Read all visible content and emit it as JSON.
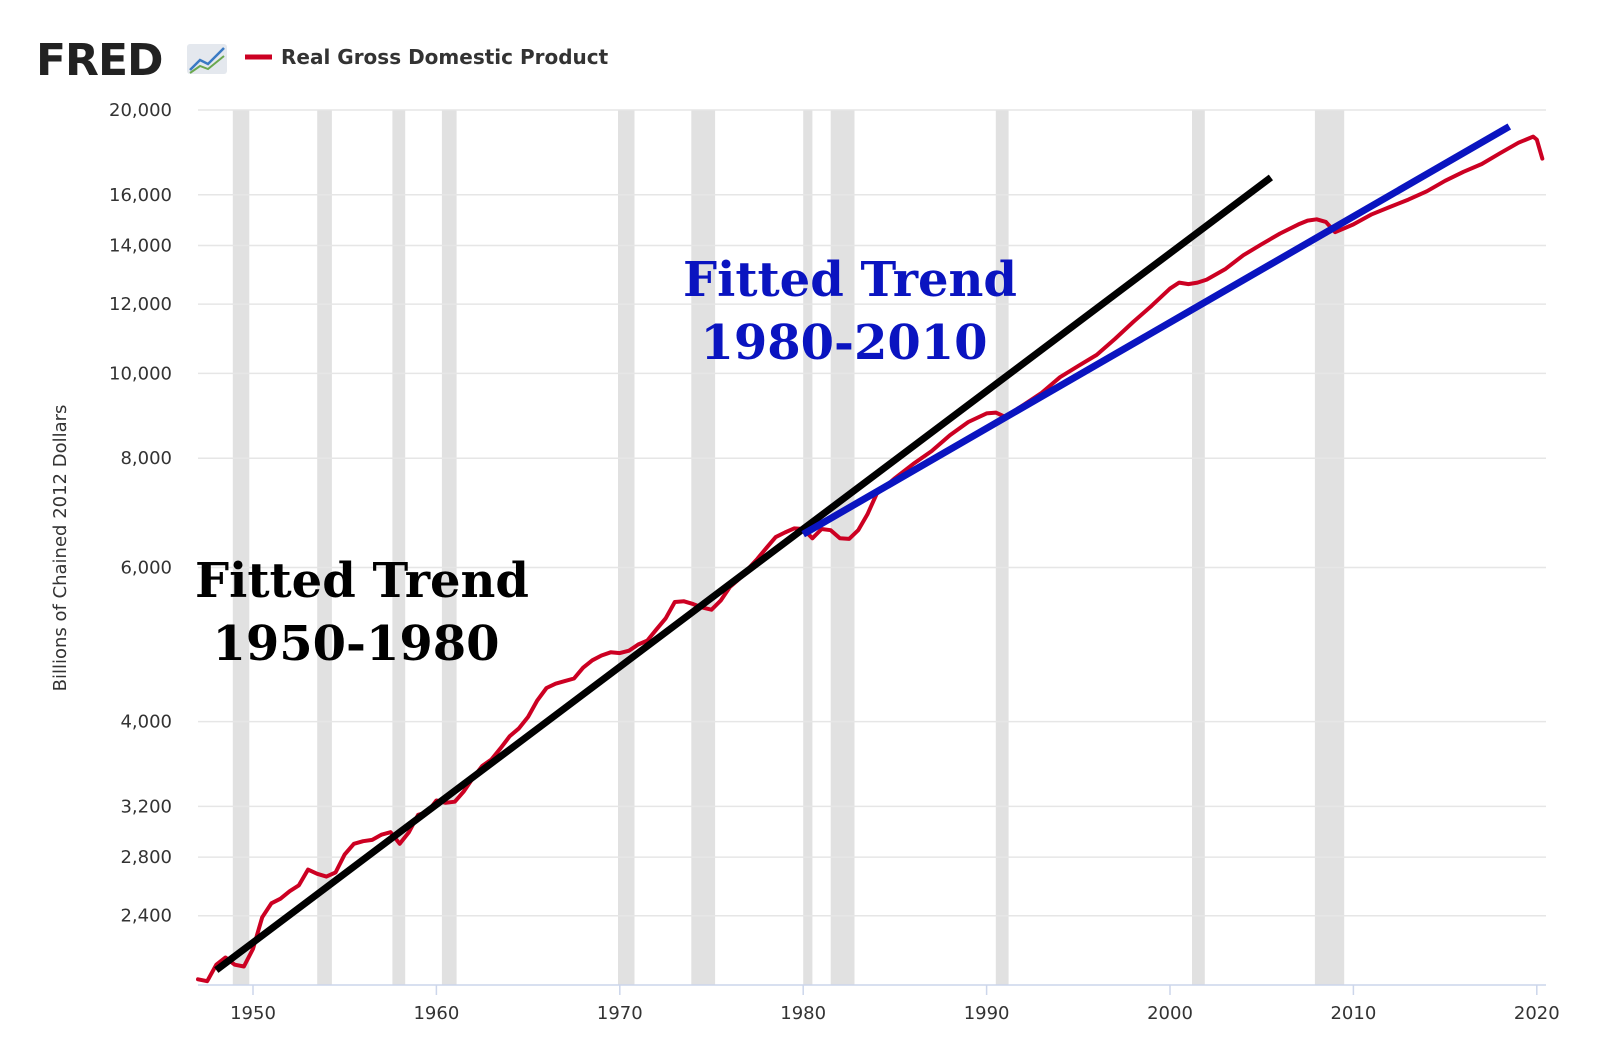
{
  "header": {
    "logo_text": "FRED",
    "legend_label": "Real Gross Domestic Product"
  },
  "colors": {
    "series": "#cc0022",
    "trend_1950_1980": "#000000",
    "trend_1980_2010": "#0a14c0",
    "recession": "#e1e1e1",
    "grid": "#e6e6e6",
    "axis": "#ccd6eb"
  },
  "chart_data": {
    "type": "line",
    "title": "",
    "xlabel": "",
    "ylabel": "Billions of Chained 2012 Dollars",
    "y_scale": "log",
    "xlim": [
      1947,
      2020.5
    ],
    "ylim": [
      2000,
      20000
    ],
    "grid": true,
    "legend_position": "top-left",
    "x_ticks": [
      1950,
      1960,
      1970,
      1980,
      1990,
      2000,
      2010,
      2020
    ],
    "y_ticks": [
      2400,
      2800,
      3200,
      4000,
      6000,
      8000,
      10000,
      12000,
      14000,
      16000,
      20000
    ],
    "recessions": [
      [
        1948.9,
        1949.8
      ],
      [
        1953.5,
        1954.3
      ],
      [
        1957.6,
        1958.3
      ],
      [
        1960.3,
        1961.1
      ],
      [
        1969.9,
        1970.8
      ],
      [
        1973.9,
        1975.2
      ],
      [
        1980.0,
        1980.5
      ],
      [
        1981.5,
        1982.8
      ],
      [
        1990.5,
        1991.2
      ],
      [
        2001.2,
        2001.9
      ],
      [
        2007.9,
        2009.5
      ]
    ],
    "series": [
      {
        "name": "Real Gross Domestic Product",
        "x": [
          1947.0,
          1947.5,
          1948.0,
          1948.5,
          1949.0,
          1949.5,
          1950.0,
          1950.5,
          1951.0,
          1951.5,
          1952.0,
          1952.5,
          1953.0,
          1953.5,
          1954.0,
          1954.5,
          1955.0,
          1955.5,
          1956.0,
          1956.5,
          1957.0,
          1957.5,
          1958.0,
          1958.5,
          1959.0,
          1959.5,
          1960.0,
          1960.5,
          1961.0,
          1961.5,
          1962.0,
          1962.5,
          1963.0,
          1963.5,
          1964.0,
          1964.5,
          1965.0,
          1965.5,
          1966.0,
          1966.5,
          1967.0,
          1967.5,
          1968.0,
          1968.5,
          1969.0,
          1969.5,
          1970.0,
          1970.5,
          1971.0,
          1971.5,
          1972.0,
          1972.5,
          1973.0,
          1973.5,
          1974.0,
          1974.5,
          1975.0,
          1975.5,
          1976.0,
          1976.5,
          1977.0,
          1977.5,
          1978.0,
          1978.5,
          1979.0,
          1979.5,
          1980.0,
          1980.5,
          1981.0,
          1981.5,
          1982.0,
          1982.5,
          1983.0,
          1983.5,
          1984.0,
          1985.0,
          1986.0,
          1987.0,
          1988.0,
          1989.0,
          1990.0,
          1990.5,
          1991.0,
          1992.0,
          1993.0,
          1994.0,
          1995.0,
          1996.0,
          1997.0,
          1998.0,
          1999.0,
          2000.0,
          2000.5,
          2001.0,
          2001.5,
          2002.0,
          2003.0,
          2004.0,
          2005.0,
          2006.0,
          2007.0,
          2007.5,
          2008.0,
          2008.5,
          2009.0,
          2009.5,
          2010.0,
          2011.0,
          2012.0,
          2013.0,
          2014.0,
          2015.0,
          2016.0,
          2017.0,
          2018.0,
          2019.0,
          2019.8,
          2020.0,
          2020.3
        ],
        "values": [
          2030,
          2020,
          2110,
          2150,
          2110,
          2100,
          2200,
          2390,
          2480,
          2510,
          2560,
          2600,
          2710,
          2680,
          2660,
          2690,
          2820,
          2900,
          2920,
          2930,
          2970,
          2990,
          2900,
          2990,
          3130,
          3150,
          3250,
          3230,
          3240,
          3330,
          3450,
          3560,
          3620,
          3730,
          3850,
          3930,
          4050,
          4230,
          4370,
          4420,
          4450,
          4480,
          4610,
          4700,
          4760,
          4800,
          4790,
          4820,
          4900,
          4950,
          5100,
          5250,
          5480,
          5490,
          5450,
          5400,
          5370,
          5500,
          5700,
          5820,
          5980,
          6140,
          6320,
          6500,
          6580,
          6650,
          6640,
          6480,
          6640,
          6620,
          6480,
          6470,
          6620,
          6900,
          7280,
          7590,
          7880,
          8150,
          8500,
          8800,
          9000,
          9020,
          8920,
          9200,
          9500,
          9900,
          10200,
          10500,
          10950,
          11450,
          11950,
          12500,
          12700,
          12650,
          12700,
          12800,
          13150,
          13650,
          14050,
          14450,
          14800,
          14950,
          15000,
          14900,
          14500,
          14650,
          14800,
          15200,
          15500,
          15800,
          16150,
          16600,
          17000,
          17350,
          17850,
          18350,
          18650,
          18500,
          17600
        ]
      },
      {
        "name": "Fitted Trend 1950-1980",
        "x": [
          1948.0,
          2005.5
        ],
        "values": [
          2080,
          16750
        ]
      },
      {
        "name": "Fitted Trend 1980-2010",
        "x": [
          1980.0,
          2018.5
        ],
        "values": [
          6550,
          19150
        ]
      }
    ],
    "annotations": [
      {
        "line1": "Fitted Trend",
        "line2": "1950-1980"
      },
      {
        "line1": "Fitted Trend",
        "line2": "1980-2010"
      }
    ]
  }
}
